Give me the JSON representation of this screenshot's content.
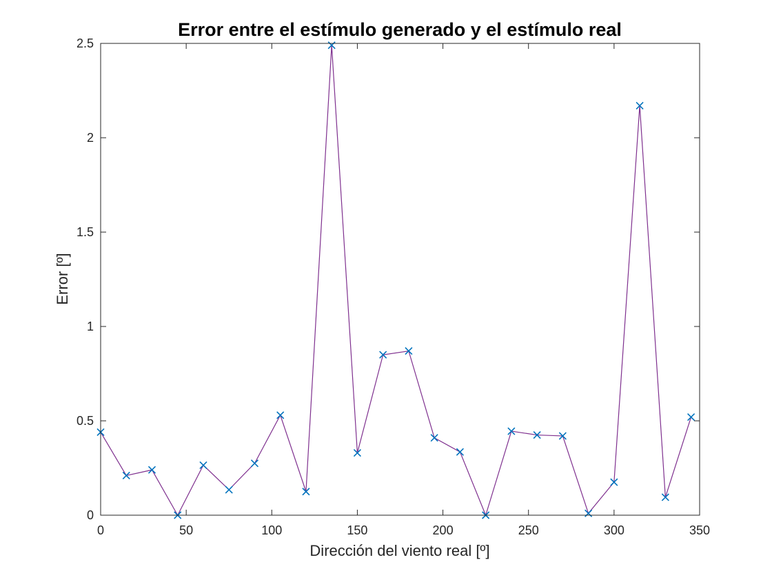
{
  "chart_data": {
    "type": "line",
    "title": "Error entre el estímulo generado y el estímulo real",
    "xlabel": "Dirección del viento real [º]",
    "ylabel": "Error [º]",
    "xlim": [
      0,
      350
    ],
    "ylim": [
      0,
      2.5
    ],
    "xticks": [
      0,
      50,
      100,
      150,
      200,
      250,
      300,
      350
    ],
    "yticks": [
      0,
      0.5,
      1,
      1.5,
      2,
      2.5
    ],
    "xtick_labels": [
      "0",
      "50",
      "100",
      "150",
      "200",
      "250",
      "300",
      "350"
    ],
    "ytick_labels": [
      "0",
      "0.5",
      "1",
      "1.5",
      "2",
      "2.5"
    ],
    "grid": false,
    "series": [
      {
        "line_color": "#7E2F8E",
        "marker_color": "#0072BD",
        "marker": "x",
        "x": [
          0,
          15,
          30,
          45,
          60,
          75,
          90,
          105,
          120,
          135,
          150,
          165,
          180,
          195,
          210,
          225,
          240,
          255,
          270,
          285,
          300,
          315,
          330,
          345
        ],
        "y": [
          0.44,
          0.21,
          0.24,
          0.0,
          0.265,
          0.135,
          0.275,
          0.53,
          0.125,
          2.49,
          0.33,
          0.85,
          0.87,
          0.41,
          0.335,
          0.0,
          0.445,
          0.425,
          0.42,
          0.01,
          0.175,
          2.17,
          0.095,
          0.52
        ]
      }
    ]
  }
}
